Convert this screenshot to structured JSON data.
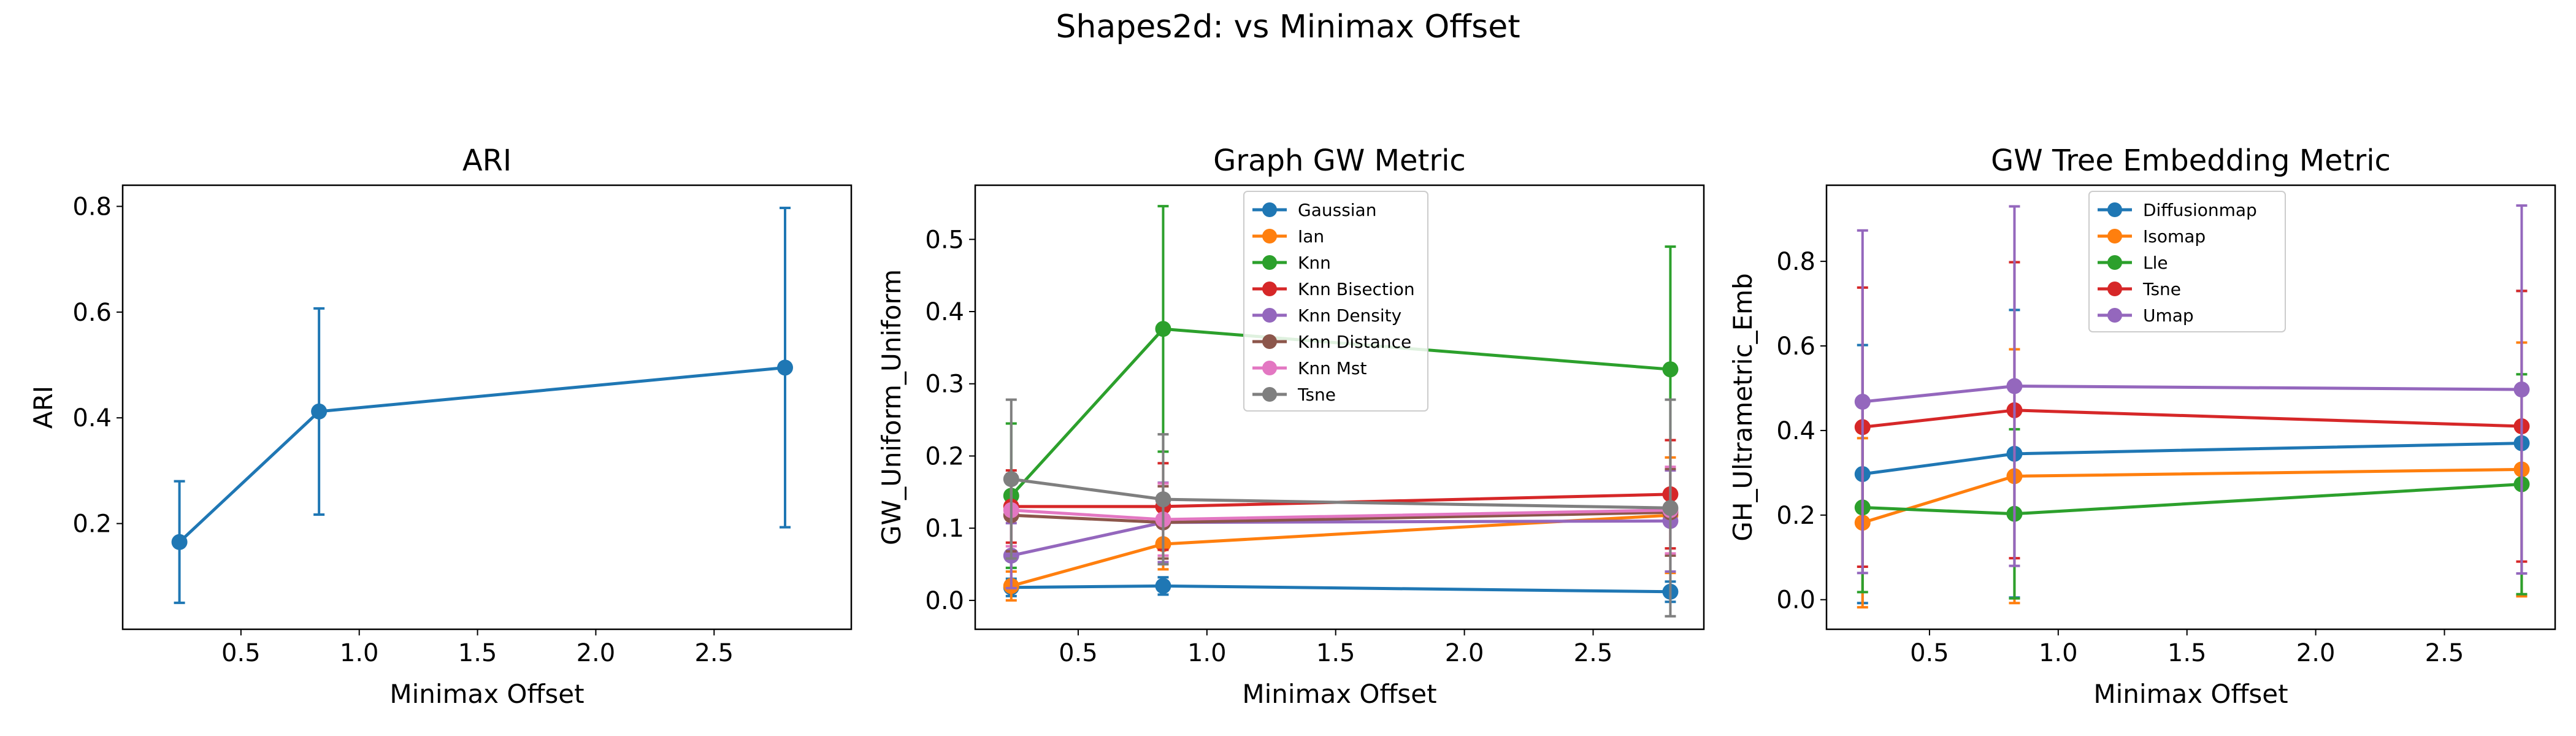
{
  "figure": {
    "suptitle": "Shapes2d: vs Minimax Offset"
  },
  "chart_data": [
    {
      "type": "line",
      "title": "ARI",
      "xlabel": "Minimax Offset",
      "ylabel": "ARI",
      "x": [
        0.24,
        0.83,
        2.8
      ],
      "xlim": [
        0.0,
        3.08
      ],
      "ylim": [
        0.0,
        0.84
      ],
      "xticks": [
        "0.5",
        "1.0",
        "1.5",
        "2.0",
        "2.5"
      ],
      "yticks": [
        "0.2",
        "0.4",
        "0.6",
        "0.8"
      ],
      "grid": false,
      "legend": "none",
      "series": [
        {
          "color": "#1f77b4",
          "values": [
            0.165,
            0.412,
            0.495
          ],
          "err": [
            0.115,
            0.195,
            0.302
          ]
        }
      ]
    },
    {
      "type": "line",
      "title": "Graph GW Metric",
      "xlabel": "Minimax Offset",
      "ylabel": "GW_Uniform_Uniform",
      "x": [
        0.24,
        0.83,
        2.8
      ],
      "xlim": [
        0.1,
        2.93
      ],
      "ylim": [
        -0.04,
        0.575
      ],
      "xticks": [
        "0.5",
        "1.0",
        "1.5",
        "2.0",
        "2.5"
      ],
      "yticks": [
        "0.0",
        "0.1",
        "0.2",
        "0.3",
        "0.4",
        "0.5"
      ],
      "grid": false,
      "legend": "upper-center",
      "series": [
        {
          "name": "Gaussian",
          "color": "#1f77b4",
          "values": [
            0.018,
            0.02,
            0.012
          ],
          "err": [
            0.012,
            0.012,
            0.014
          ]
        },
        {
          "name": "Ian",
          "color": "#ff7f0e",
          "values": [
            0.02,
            0.078,
            0.118
          ],
          "err": [
            0.02,
            0.035,
            0.08
          ]
        },
        {
          "name": "Knn",
          "color": "#2ca02c",
          "values": [
            0.145,
            0.376,
            0.32
          ],
          "err": [
            0.1,
            0.17,
            0.17
          ]
        },
        {
          "name": "Knn Bisection",
          "color": "#d62728",
          "values": [
            0.13,
            0.13,
            0.147
          ],
          "err": [
            0.05,
            0.06,
            0.075
          ]
        },
        {
          "name": "Knn Density",
          "color": "#9467bd",
          "values": [
            0.062,
            0.108,
            0.11
          ],
          "err": [
            0.045,
            0.055,
            0.07
          ]
        },
        {
          "name": "Knn Distance",
          "color": "#8c564b",
          "values": [
            0.118,
            0.108,
            0.122
          ],
          "err": [
            0.05,
            0.05,
            0.06
          ]
        },
        {
          "name": "Knn Mst",
          "color": "#e377c2",
          "values": [
            0.125,
            0.112,
            0.125
          ],
          "err": [
            0.05,
            0.05,
            0.06
          ]
        },
        {
          "name": "Tsne",
          "color": "#7f7f7f",
          "values": [
            0.168,
            0.14,
            0.128
          ],
          "err": [
            0.11,
            0.09,
            0.15
          ]
        }
      ]
    },
    {
      "type": "line",
      "title": "GW Tree Embedding Metric",
      "xlabel": "Minimax Offset",
      "ylabel": "GH_Ultrametric_Emb",
      "x": [
        0.24,
        0.83,
        2.8
      ],
      "xlim": [
        0.1,
        2.93
      ],
      "ylim": [
        -0.07,
        0.98
      ],
      "xticks": [
        "0.5",
        "1.0",
        "1.5",
        "2.0",
        "2.5"
      ],
      "yticks": [
        "0.0",
        "0.2",
        "0.4",
        "0.6",
        "0.8"
      ],
      "grid": false,
      "legend": "upper-center",
      "series": [
        {
          "name": "Diffusionmap",
          "color": "#1f77b4",
          "values": [
            0.297,
            0.345,
            0.37
          ],
          "err": [
            0.305,
            0.34,
            0.36
          ]
        },
        {
          "name": "Isomap",
          "color": "#ff7f0e",
          "values": [
            0.182,
            0.292,
            0.308
          ],
          "err": [
            0.2,
            0.3,
            0.3
          ]
        },
        {
          "name": "Lle",
          "color": "#2ca02c",
          "values": [
            0.218,
            0.203,
            0.273
          ],
          "err": [
            0.2,
            0.2,
            0.26
          ]
        },
        {
          "name": "Tsne",
          "color": "#d62728",
          "values": [
            0.408,
            0.448,
            0.41
          ],
          "err": [
            0.33,
            0.35,
            0.32
          ]
        },
        {
          "name": "Umap",
          "color": "#9467bd",
          "values": [
            0.468,
            0.505,
            0.497
          ],
          "err": [
            0.405,
            0.425,
            0.435
          ]
        }
      ]
    }
  ]
}
